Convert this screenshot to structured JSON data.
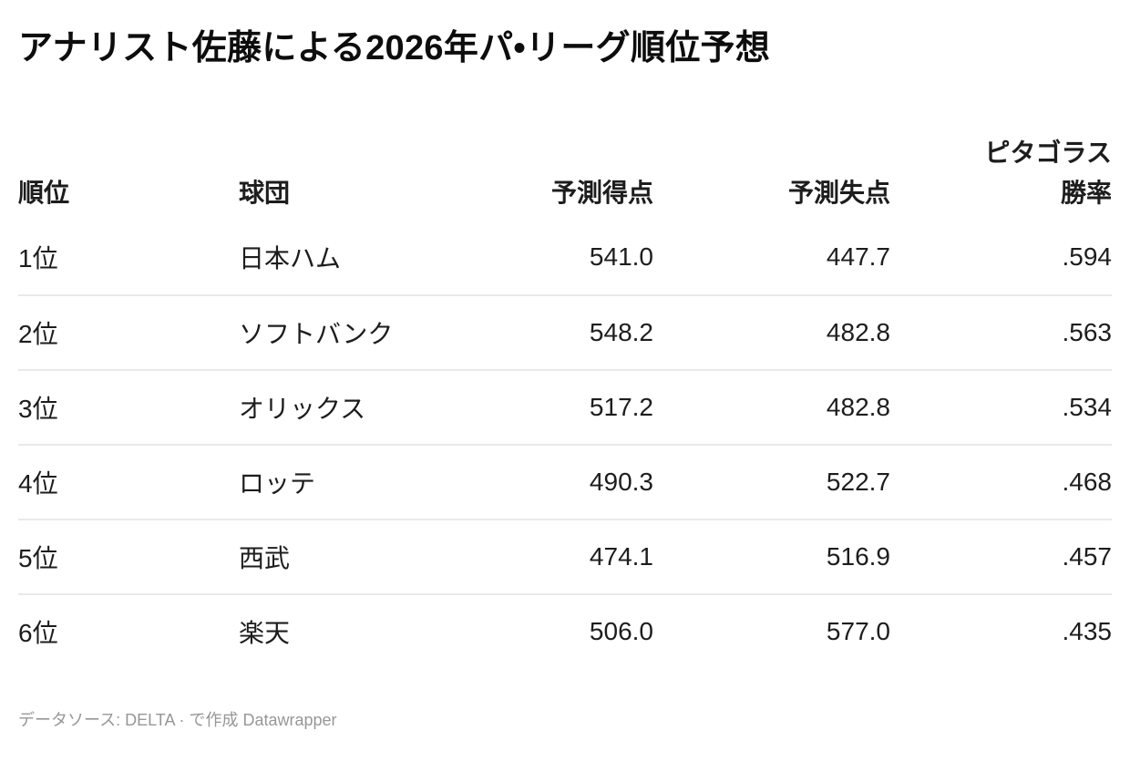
{
  "title": "アナリスト佐藤による2026年パ•リーグ順位予想",
  "table": {
    "columns": [
      {
        "id": "rank",
        "label": "順位",
        "align": "left"
      },
      {
        "id": "team",
        "label": "球団",
        "align": "left"
      },
      {
        "id": "runs_scored",
        "label": "予測得点",
        "align": "right"
      },
      {
        "id": "runs_allowed",
        "label": "予測失点",
        "align": "right"
      },
      {
        "id": "pythag_wpct",
        "label": "ピタゴラス",
        "label2": "勝率",
        "align": "right"
      }
    ],
    "rows": [
      {
        "rank": "1位",
        "team": "日本ハム",
        "runs_scored": "541.0",
        "runs_allowed": "447.7",
        "pythag": ".594"
      },
      {
        "rank": "2位",
        "team": "ソフトバンク",
        "runs_scored": "548.2",
        "runs_allowed": "482.8",
        "pythag": ".563"
      },
      {
        "rank": "3位",
        "team": "オリックス",
        "runs_scored": "517.2",
        "runs_allowed": "482.8",
        "pythag": ".534"
      },
      {
        "rank": "4位",
        "team": "ロッテ",
        "runs_scored": "490.3",
        "runs_allowed": "522.7",
        "pythag": ".468"
      },
      {
        "rank": "5位",
        "team": "西武",
        "runs_scored": "474.1",
        "runs_allowed": "516.9",
        "pythag": ".457"
      },
      {
        "rank": "6位",
        "team": "楽天",
        "runs_scored": "506.0",
        "runs_allowed": "577.0",
        "pythag": ".435"
      }
    ]
  },
  "footer": {
    "prefix": "データソース: ",
    "source_link": "DELTA",
    "separator": " · ",
    "created_with": "で作成 ",
    "tool_link": "Datawrapper"
  },
  "colors": {
    "background": "#ffffff",
    "text_primary": "#1d1d1d",
    "title_text": "#0d0d0d",
    "row_divider": "#e9e9e9",
    "footer_text": "#979797"
  },
  "chart_data": {
    "type": "table",
    "title": "アナリスト佐藤による2026年パ•リーグ順位予想",
    "columns": [
      "順位",
      "球団",
      "予測得点",
      "予測失点",
      "ピタゴラス勝率"
    ],
    "rows": [
      [
        "1位",
        "日本ハム",
        541.0,
        447.7,
        0.594
      ],
      [
        "2位",
        "ソフトバンク",
        548.2,
        482.8,
        0.563
      ],
      [
        "3位",
        "オリックス",
        517.2,
        482.8,
        0.534
      ],
      [
        "4位",
        "ロッテ",
        490.3,
        522.7,
        0.468
      ],
      [
        "5位",
        "西武",
        474.1,
        516.9,
        0.457
      ],
      [
        "6位",
        "楽天",
        506.0,
        577.0,
        0.435
      ]
    ],
    "source": "DELTA",
    "layout_hints": {
      "row_dividers": "between data rows only",
      "numeric_columns_right_aligned": true,
      "header_bold": true,
      "last_header_wraps_two_lines": true
    }
  }
}
